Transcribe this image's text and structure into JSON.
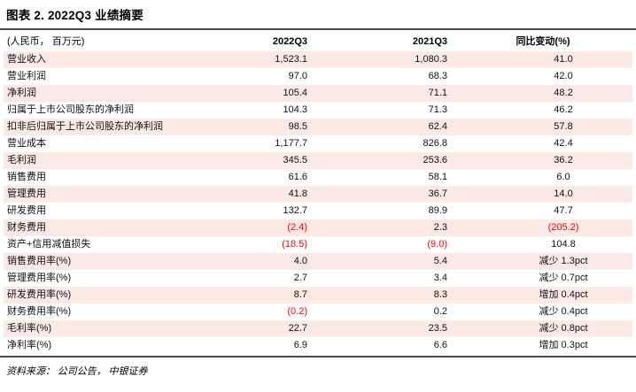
{
  "title": "图表 2. 2022Q3 业绩摘要",
  "table": {
    "unit_header": "(人民币， 百万元)",
    "col_headers": [
      "2022Q3",
      "2021Q3",
      "同比变动(%)"
    ],
    "rows": [
      {
        "label": "营业收入",
        "q3_2022": "1,523.1",
        "q3_2021": "1,080.3",
        "yoy": "41.0"
      },
      {
        "label": "营业利润",
        "q3_2022": "97.0",
        "q3_2021": "68.3",
        "yoy": "42.0"
      },
      {
        "label": "净利润",
        "q3_2022": "105.4",
        "q3_2021": "71.1",
        "yoy": "48.2"
      },
      {
        "label": "归属于上市公司股东的净利润",
        "q3_2022": "104.3",
        "q3_2021": "71.3",
        "yoy": "46.2"
      },
      {
        "label": "扣非后归属于上市公司股东的净利润",
        "q3_2022": "98.5",
        "q3_2021": "62.4",
        "yoy": "57.8"
      },
      {
        "label": "营业成本",
        "q3_2022": "1,177.7",
        "q3_2021": "826.8",
        "yoy": "42.4"
      },
      {
        "label": "毛利润",
        "q3_2022": "345.5",
        "q3_2021": "253.6",
        "yoy": "36.2"
      },
      {
        "label": "销售费用",
        "q3_2022": "61.6",
        "q3_2021": "58.1",
        "yoy": "6.0"
      },
      {
        "label": "管理费用",
        "q3_2022": "41.8",
        "q3_2021": "36.7",
        "yoy": "14.0"
      },
      {
        "label": "研发费用",
        "q3_2022": "132.7",
        "q3_2021": "89.9",
        "yoy": "47.7"
      },
      {
        "label": "财务费用",
        "q3_2022": "(2.4)",
        "q3_2021": "2.3",
        "yoy": "(205.2)"
      },
      {
        "label": "资产+信用减值损失",
        "q3_2022": "(18.5)",
        "q3_2021": "(9.0)",
        "yoy": "104.8"
      },
      {
        "label": "销售费用率(%)",
        "q3_2022": "4.0",
        "q3_2021": "5.4",
        "yoy": "减少 1.3pct"
      },
      {
        "label": "管理费用率(%)",
        "q3_2022": "2.7",
        "q3_2021": "3.4",
        "yoy": "减少 0.7pct"
      },
      {
        "label": "研发费用率(%)",
        "q3_2022": "8.7",
        "q3_2021": "8.3",
        "yoy": "增加 0.4pct"
      },
      {
        "label": "财务费用率(%)",
        "q3_2022": "(0.2)",
        "q3_2021": "0.2",
        "yoy": "减少 0.4pct"
      },
      {
        "label": "毛利率(%)",
        "q3_2022": "22.7",
        "q3_2021": "23.5",
        "yoy": "减少 0.8pct"
      },
      {
        "label": "净利率(%)",
        "q3_2022": "6.9",
        "q3_2021": "6.6",
        "yoy": "增加 0.3pct"
      }
    ]
  },
  "footer": {
    "source": "资料来源： 公司公告， 中银证券"
  },
  "colors": {
    "row_pink": "#fbe9e6",
    "negative_red": "#ff0000",
    "rule_gray": "#4a4a4a"
  }
}
